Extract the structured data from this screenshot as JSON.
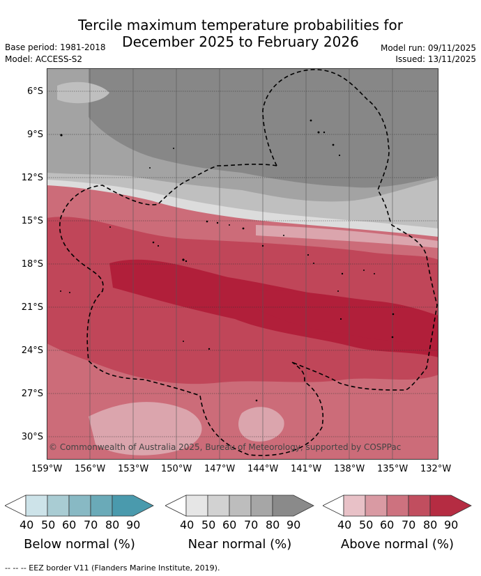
{
  "title": {
    "line1": "Tercile maximum temperature probabilities for",
    "line2": "December 2025 to February 2026"
  },
  "meta": {
    "base_period": "Base period: 1981-2018",
    "model": "Model: ACCESS-S2",
    "model_run": "Model run: 09/11/2025",
    "issued": "Issued: 13/11/2025"
  },
  "axes": {
    "lat_labels": [
      "6°S",
      "9°S",
      "12°S",
      "15°S",
      "18°S",
      "21°S",
      "24°S",
      "27°S",
      "30°S"
    ],
    "lon_labels": [
      "159°W",
      "156°W",
      "153°W",
      "150°W",
      "147°W",
      "144°W",
      "141°W",
      "138°W",
      "135°W",
      "132°W"
    ]
  },
  "copyright": "© Commonwealth of Australia 2025, Bureau of Meteorology, supported by COSPPac",
  "legends": [
    {
      "label": "Below normal (%)",
      "ticks": [
        "40",
        "50",
        "60",
        "70",
        "80",
        "90"
      ],
      "colors": [
        "#ffffff",
        "#cde3e9",
        "#a9ccd3",
        "#88b9c4",
        "#6aaab8",
        "#4a9aad"
      ]
    },
    {
      "label": "Near normal (%)",
      "ticks": [
        "40",
        "50",
        "60",
        "70",
        "80",
        "90"
      ],
      "colors": [
        "#ffffff",
        "#e6e6e6",
        "#d2d2d2",
        "#bdbdbd",
        "#a6a6a6",
        "#8a8a8a"
      ]
    },
    {
      "label": "Above normal (%)",
      "ticks": [
        "40",
        "50",
        "60",
        "70",
        "80",
        "90"
      ],
      "colors": [
        "#ffffff",
        "#e8c1c7",
        "#d99aa3",
        "#cd727f",
        "#c14e5f",
        "#b52c42"
      ]
    }
  ],
  "footnote": "--  --  -- EEZ border V11 (Flanders Marine Institute, 2019).",
  "colors": {
    "near_dark": "#878787",
    "near_mid": "#a3a3a3",
    "near_light": "#bfbfbf",
    "near_lighter": "#dcdcdc",
    "above_light": "#dba5ad",
    "above_mid": "#cc6c79",
    "above_strong": "#c04659",
    "above_dark": "#b11f3a"
  }
}
